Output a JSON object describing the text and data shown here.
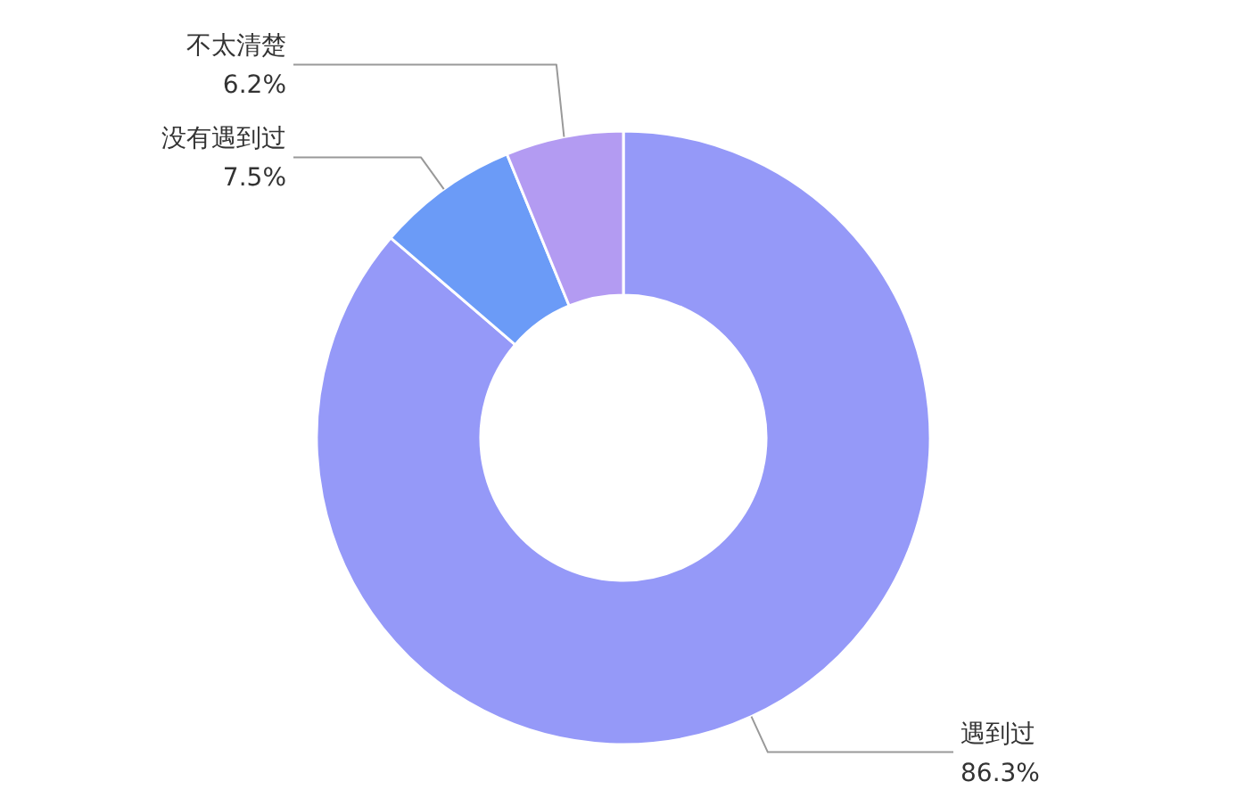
{
  "chart_data": {
    "type": "donut",
    "categories": [
      "遇到过",
      "没有遇到过",
      "不太清楚"
    ],
    "values": [
      86.3,
      7.5,
      6.2
    ],
    "value_labels": [
      "86.3%",
      "7.5%",
      "6.2%"
    ],
    "colors": [
      "#9599f8",
      "#6b9bf7",
      "#b39bf2"
    ]
  }
}
